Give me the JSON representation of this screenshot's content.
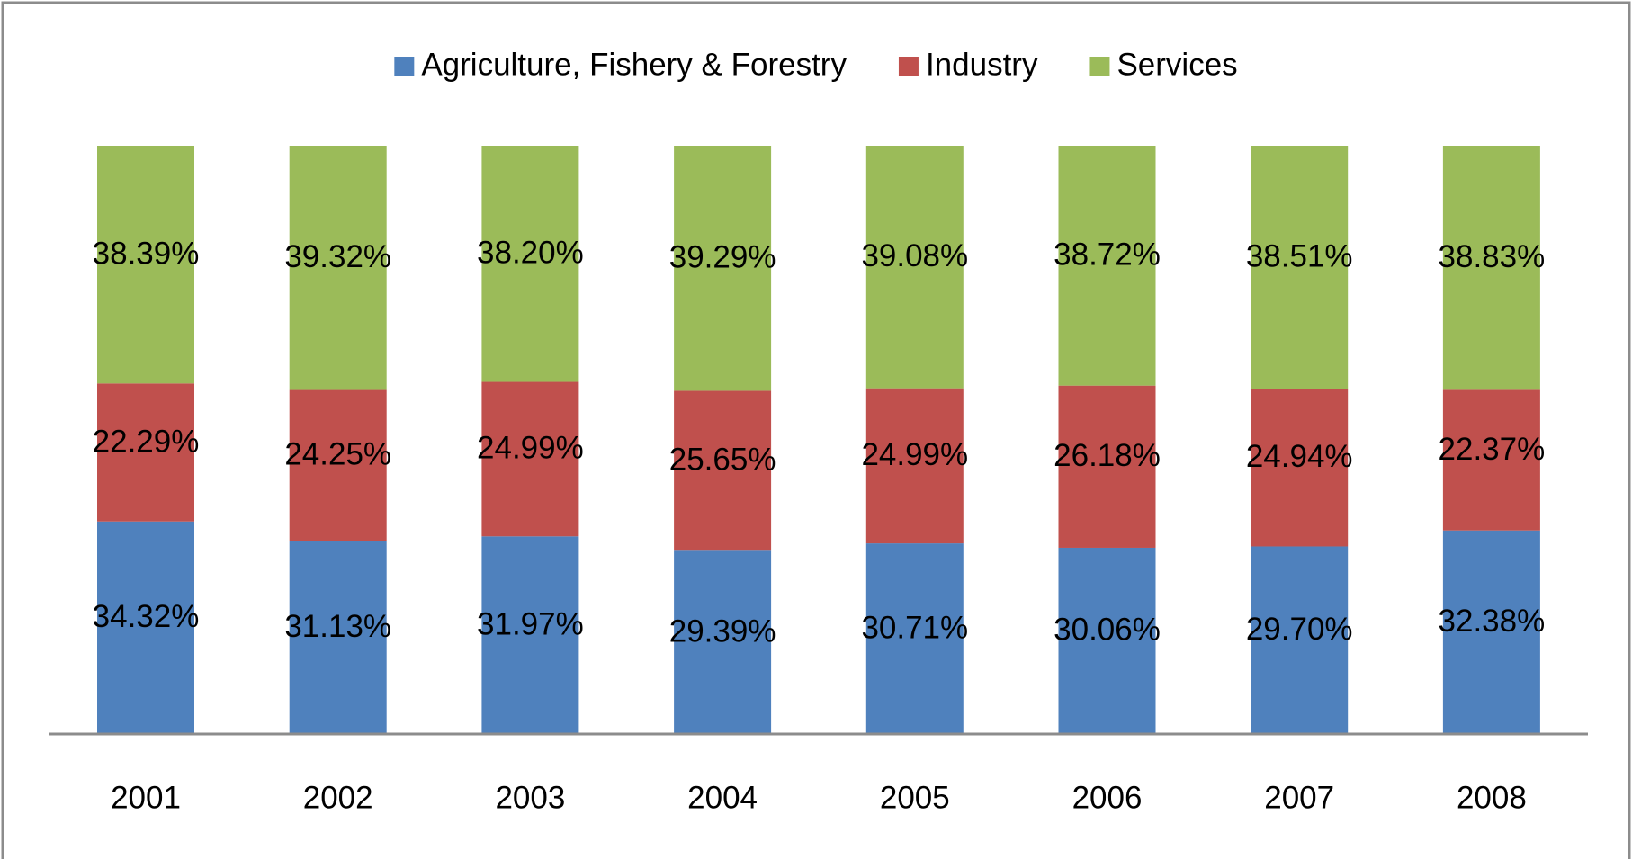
{
  "chart_data": {
    "type": "bar",
    "stacking": "percent",
    "categories": [
      "2001",
      "2002",
      "2003",
      "2004",
      "2005",
      "2006",
      "2007",
      "2008"
    ],
    "series": [
      {
        "name": "Agriculture, Fishery & Forestry",
        "color": "#4f81bd",
        "values": [
          34.32,
          31.13,
          31.97,
          29.39,
          30.71,
          30.06,
          29.7,
          32.38
        ],
        "value_labels": [
          "34.32%",
          "31.13%",
          "31.97%",
          "29.39%",
          "30.71%",
          "30.06%",
          "29.70%",
          "32.38%"
        ]
      },
      {
        "name": "Industry",
        "color": "#c0504d",
        "values": [
          22.29,
          24.25,
          24.99,
          25.65,
          24.99,
          26.18,
          24.94,
          22.37
        ],
        "value_labels": [
          "22.29%",
          "24.25%",
          "24.99%",
          "25.65%",
          "24.99%",
          "26.18%",
          "24.94%",
          "22.37%"
        ]
      },
      {
        "name": "Services",
        "color": "#9bbb59",
        "values": [
          38.39,
          39.32,
          38.2,
          39.29,
          39.08,
          38.72,
          38.51,
          38.83
        ],
        "value_labels": [
          "38.39%",
          "39.32%",
          "38.20%",
          "39.29%",
          "39.08%",
          "38.72%",
          "38.51%",
          "38.83%"
        ]
      }
    ],
    "legend": "top"
  }
}
